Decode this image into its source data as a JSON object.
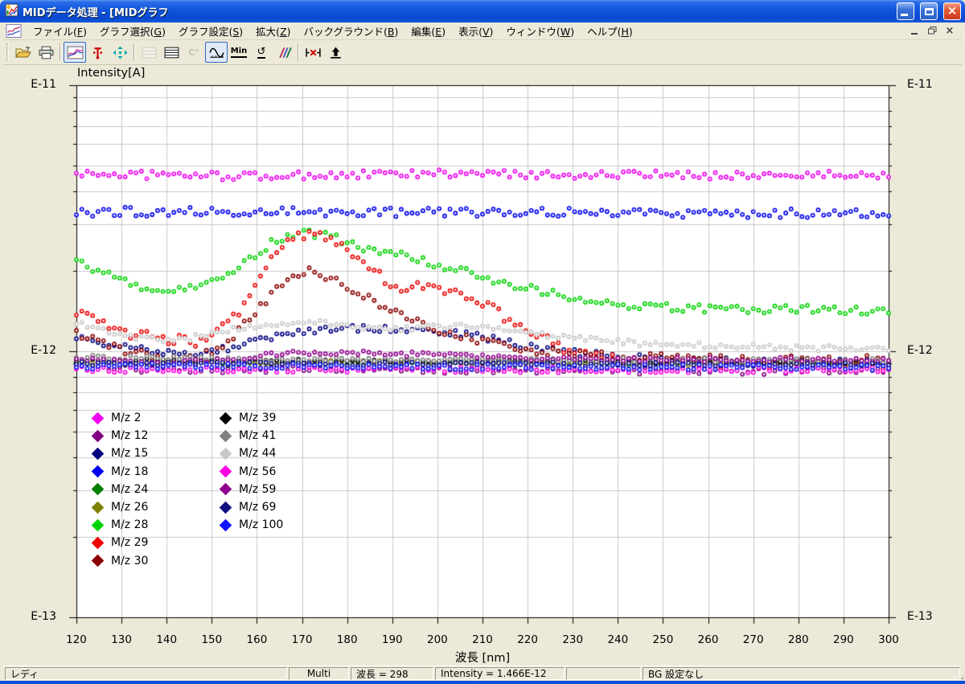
{
  "window": {
    "title": "MIDデータ処理 - [MIDグラフ",
    "controls": [
      {
        "name": "minimize-button"
      },
      {
        "name": "maximize-button"
      },
      {
        "name": "close-button"
      }
    ]
  },
  "menu": {
    "items": [
      {
        "label": "ファイル",
        "mnemonic": "F"
      },
      {
        "label": "グラフ選択",
        "mnemonic": "G"
      },
      {
        "label": "グラフ設定",
        "mnemonic": "S"
      },
      {
        "label": "拡大",
        "mnemonic": "Z"
      },
      {
        "label": "バックグラウンド",
        "mnemonic": "B"
      },
      {
        "label": "編集",
        "mnemonic": "E"
      },
      {
        "label": "表示",
        "mnemonic": "V"
      },
      {
        "label": "ウィンドウ",
        "mnemonic": "W"
      },
      {
        "label": "ヘルプ",
        "mnemonic": "H"
      }
    ],
    "mdi_controls": [
      {
        "name": "child-minimize-button"
      },
      {
        "name": "child-restore-button"
      },
      {
        "name": "child-close-button"
      }
    ]
  },
  "toolbar": {
    "groups": [
      [
        {
          "name": "open-file",
          "icon": "open",
          "state": "normal"
        },
        {
          "name": "print",
          "icon": "print",
          "state": "normal"
        }
      ],
      [
        {
          "name": "graph-display",
          "icon": "graph",
          "state": "pressed"
        },
        {
          "name": "marker-probe",
          "icon": "probe",
          "state": "normal"
        },
        {
          "name": "fit-view",
          "icon": "fit",
          "state": "normal"
        }
      ],
      [
        {
          "name": "grid-style-a",
          "icon": "grid_a",
          "state": "disabled"
        },
        {
          "name": "grid-style-b",
          "icon": "grid_b",
          "state": "normal"
        },
        {
          "name": "temperature-scale",
          "icon": "celsius",
          "state": "disabled"
        },
        {
          "name": "waveform-mode",
          "icon": "wave",
          "state": "pressed"
        },
        {
          "name": "min-scale",
          "icon": "min",
          "state": "normal",
          "label": "Min"
        },
        {
          "name": "reset-scale",
          "icon": "reset",
          "state": "normal"
        },
        {
          "name": "background-colors",
          "icon": "multi",
          "state": "normal"
        }
      ],
      [
        {
          "name": "delete-range",
          "icon": "delrange",
          "state": "normal"
        },
        {
          "name": "export-top",
          "icon": "uparrow",
          "state": "normal"
        }
      ]
    ]
  },
  "chart_data": {
    "type": "scatter",
    "title_y": "Intensity[A]",
    "x_axis": {
      "label": "波長 [nm]",
      "min": 120,
      "max": 300,
      "tick_step": 10,
      "ticks": [
        120,
        130,
        140,
        150,
        160,
        170,
        180,
        190,
        200,
        210,
        220,
        230,
        240,
        250,
        260,
        270,
        280,
        290,
        300
      ]
    },
    "y_axis": {
      "scale": "log",
      "unit": "1e-12 A",
      "min": 0.1,
      "max": 10,
      "tick_labels": [
        {
          "label": "E-11",
          "value": 10
        },
        {
          "label": "E-12",
          "value": 1
        },
        {
          "label": "E-13",
          "value": 0.1
        }
      ],
      "minor_gridlines": [
        2,
        3,
        4,
        5,
        6,
        7,
        8,
        9
      ]
    },
    "grid": true,
    "point_step_nm": 1.2,
    "legend_split": 9,
    "series": [
      {
        "label": "M/z 2",
        "mz": 2,
        "color": "#f000f0",
        "noise": 0.035,
        "anchors": [
          [
            120,
            4.65
          ],
          [
            160,
            4.55
          ],
          [
            200,
            4.65
          ],
          [
            240,
            4.6
          ],
          [
            300,
            4.6
          ]
        ]
      },
      {
        "label": "M/z 12",
        "mz": 12,
        "color": "#800080",
        "noise": 0.03,
        "anchors": [
          [
            120,
            0.86
          ],
          [
            200,
            0.85
          ],
          [
            300,
            0.84
          ]
        ]
      },
      {
        "label": "M/z 15",
        "mz": 15,
        "color": "#000080",
        "noise": 0.03,
        "anchors": [
          [
            120,
            1.13
          ],
          [
            130,
            1.04
          ],
          [
            140,
            0.98
          ],
          [
            150,
            0.99
          ],
          [
            160,
            1.09
          ],
          [
            170,
            1.19
          ],
          [
            180,
            1.22
          ],
          [
            190,
            1.22
          ],
          [
            200,
            1.19
          ],
          [
            210,
            1.13
          ],
          [
            220,
            1.05
          ],
          [
            232,
            0.98
          ],
          [
            250,
            0.93
          ],
          [
            300,
            0.91
          ]
        ]
      },
      {
        "label": "M/z 18",
        "mz": 18,
        "color": "#0000ee",
        "noise": 0.04,
        "anchors": [
          [
            120,
            3.35
          ],
          [
            300,
            3.3
          ]
        ]
      },
      {
        "label": "M/z 24",
        "mz": 24,
        "color": "#008000",
        "noise": 0.02,
        "anchors": [
          [
            120,
            0.9
          ],
          [
            300,
            0.9
          ]
        ]
      },
      {
        "label": "M/z 26",
        "mz": 26,
        "color": "#808000",
        "noise": 0.02,
        "anchors": [
          [
            120,
            0.91
          ],
          [
            300,
            0.9
          ]
        ]
      },
      {
        "label": "M/z 28",
        "mz": 28,
        "color": "#00d400",
        "noise": 0.035,
        "anchors": [
          [
            120,
            2.18
          ],
          [
            126,
            1.96
          ],
          [
            133,
            1.77
          ],
          [
            140,
            1.71
          ],
          [
            146,
            1.73
          ],
          [
            152,
            1.9
          ],
          [
            158,
            2.22
          ],
          [
            163,
            2.54
          ],
          [
            168,
            2.74
          ],
          [
            172,
            2.78
          ],
          [
            178,
            2.65
          ],
          [
            185,
            2.42
          ],
          [
            192,
            2.29
          ],
          [
            200,
            2.13
          ],
          [
            210,
            1.9
          ],
          [
            220,
            1.73
          ],
          [
            228,
            1.62
          ],
          [
            236,
            1.54
          ],
          [
            245,
            1.47
          ],
          [
            260,
            1.45
          ],
          [
            280,
            1.44
          ],
          [
            300,
            1.42
          ]
        ]
      },
      {
        "label": "M/z 29",
        "mz": 29,
        "color": "#ee0000",
        "noise": 0.045,
        "anchors": [
          [
            120,
            1.41
          ],
          [
            126,
            1.25
          ],
          [
            132,
            1.17
          ],
          [
            140,
            1.11
          ],
          [
            147,
            1.09
          ],
          [
            152,
            1.21
          ],
          [
            156,
            1.39
          ],
          [
            160,
            1.83
          ],
          [
            164,
            2.34
          ],
          [
            168,
            2.69
          ],
          [
            171,
            2.76
          ],
          [
            175,
            2.65
          ],
          [
            180,
            2.42
          ],
          [
            184,
            2.1
          ],
          [
            188,
            1.87
          ],
          [
            193,
            1.73
          ],
          [
            198,
            1.8
          ],
          [
            205,
            1.62
          ],
          [
            210,
            1.54
          ],
          [
            215,
            1.34
          ],
          [
            220,
            1.21
          ],
          [
            226,
            1.06
          ],
          [
            232,
            0.98
          ],
          [
            240,
            0.93
          ],
          [
            260,
            0.9
          ],
          [
            300,
            0.9
          ]
        ]
      },
      {
        "label": "M/z 30",
        "mz": 30,
        "color": "#8b0000",
        "noise": 0.04,
        "anchors": [
          [
            120,
            1.18
          ],
          [
            128,
            1.04
          ],
          [
            136,
            0.96
          ],
          [
            144,
            0.94
          ],
          [
            150,
            0.99
          ],
          [
            155,
            1.13
          ],
          [
            160,
            1.44
          ],
          [
            165,
            1.78
          ],
          [
            170,
            2.0
          ],
          [
            175,
            1.94
          ],
          [
            180,
            1.77
          ],
          [
            186,
            1.54
          ],
          [
            192,
            1.38
          ],
          [
            198,
            1.25
          ],
          [
            206,
            1.12
          ],
          [
            215,
            1.05
          ],
          [
            225,
            0.99
          ],
          [
            240,
            0.95
          ],
          [
            270,
            0.93
          ],
          [
            300,
            0.93
          ]
        ]
      },
      {
        "label": "M/z 39",
        "mz": 39,
        "color": "#000000",
        "noise": 0.02,
        "anchors": [
          [
            120,
            0.92
          ],
          [
            300,
            0.91
          ]
        ]
      },
      {
        "label": "M/z 41",
        "mz": 41,
        "color": "#808080",
        "noise": 0.02,
        "anchors": [
          [
            120,
            0.95
          ],
          [
            160,
            0.93
          ],
          [
            220,
            0.93
          ],
          [
            300,
            0.92
          ]
        ]
      },
      {
        "label": "M/z 44",
        "mz": 44,
        "color": "#c8c8c8",
        "noise": 0.025,
        "anchors": [
          [
            120,
            1.27
          ],
          [
            128,
            1.17
          ],
          [
            136,
            1.11
          ],
          [
            145,
            1.12
          ],
          [
            155,
            1.22
          ],
          [
            165,
            1.28
          ],
          [
            175,
            1.29
          ],
          [
            185,
            1.22
          ],
          [
            195,
            1.22
          ],
          [
            203,
            1.25
          ],
          [
            210,
            1.22
          ],
          [
            220,
            1.17
          ],
          [
            232,
            1.11
          ],
          [
            245,
            1.07
          ],
          [
            260,
            1.05
          ],
          [
            280,
            1.03
          ],
          [
            300,
            1.02
          ]
        ]
      },
      {
        "label": "M/z 56",
        "mz": 56,
        "color": "#ff00e0",
        "noise": 0.025,
        "anchors": [
          [
            120,
            0.855
          ],
          [
            300,
            0.85
          ]
        ]
      },
      {
        "label": "M/z 59",
        "mz": 59,
        "color": "#90008e",
        "noise": 0.02,
        "anchors": [
          [
            120,
            0.93
          ],
          [
            140,
            0.9
          ],
          [
            155,
            0.93
          ],
          [
            165,
            0.98
          ],
          [
            175,
            0.99
          ],
          [
            190,
            0.98
          ],
          [
            205,
            0.96
          ],
          [
            220,
            0.94
          ],
          [
            240,
            0.93
          ],
          [
            300,
            0.93
          ]
        ]
      },
      {
        "label": "M/z 69",
        "mz": 69,
        "color": "#101080",
        "noise": 0.018,
        "anchors": [
          [
            120,
            0.9
          ],
          [
            300,
            0.89
          ]
        ]
      },
      {
        "label": "M/z 100",
        "mz": 100,
        "color": "#1414ff",
        "noise": 0.025,
        "anchors": [
          [
            120,
            0.88
          ],
          [
            300,
            0.87
          ]
        ]
      }
    ]
  },
  "status_bar": {
    "panels": [
      "レディ",
      "Multi",
      "波長 = 298",
      "Intensity = 1.466E-12",
      "",
      "BG 設定なし"
    ]
  }
}
